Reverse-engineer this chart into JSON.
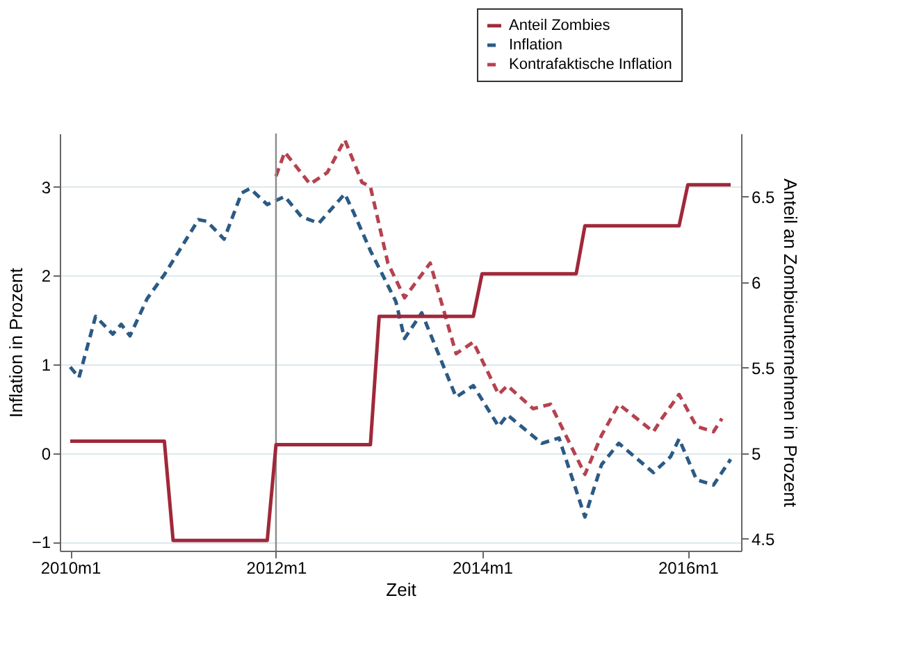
{
  "chart_data": {
    "type": "line",
    "xlabel": "Zeit",
    "ylabel": "Inflation in Prozent",
    "y2label": "Anteil an Zombieunternehmen in Prozent",
    "xlim": [
      "2009-11-25",
      "2016-07-08"
    ],
    "xticks": [
      {
        "value": "2010-01",
        "label": "2010m1"
      },
      {
        "value": "2012-01",
        "label": "2012m1"
      },
      {
        "value": "2014-01",
        "label": "2014m1"
      },
      {
        "value": "2016-01",
        "label": "2016m1"
      }
    ],
    "ylim": [
      -1.1,
      3.6
    ],
    "yticks": [
      -1,
      0,
      1,
      2,
      3
    ],
    "y2lim": [
      4.43,
      6.87
    ],
    "y2ticks": [
      4.5,
      5,
      5.5,
      6,
      6.5
    ],
    "grid": "y",
    "legend": "top right",
    "ref_lines": [
      {
        "axis": "x",
        "value": "2012-01",
        "color": "#8c8c8c",
        "line_style": "solid"
      }
    ],
    "series": [
      {
        "name": "Anteil Zombies",
        "color": "#a0283a",
        "axis": "y2",
        "line_style": "solid",
        "x": [
          "2010-01",
          "2010-12",
          "2011-01",
          "2011-12",
          "2012-01",
          "2012-12",
          "2013-01",
          "2013-12",
          "2014-01",
          "2014-12",
          "2015-01",
          "2015-12",
          "2016-01",
          "2016-06"
        ],
        "values": [
          5.07,
          5.07,
          4.49,
          4.49,
          5.05,
          5.05,
          5.8,
          5.8,
          6.05,
          6.05,
          6.33,
          6.33,
          6.57,
          6.57
        ]
      },
      {
        "name": "Inflation",
        "color": "#2b5a85",
        "line_style": "dashed",
        "x": [
          "2010-01",
          "2010-02",
          "2010-04",
          "2010-06",
          "2010-07",
          "2010-08",
          "2010-10",
          "2010-12",
          "2011-04",
          "2011-05",
          "2011-07",
          "2011-09",
          "2011-10",
          "2011-12",
          "2012-02",
          "2012-04",
          "2012-06",
          "2012-09",
          "2012-10",
          "2012-12",
          "2013-03",
          "2013-04",
          "2013-06",
          "2013-10",
          "2013-12",
          "2014-03",
          "2014-04",
          "2014-08",
          "2014-10",
          "2015-01",
          "2015-03",
          "2015-05",
          "2015-09",
          "2015-11",
          "2015-12",
          "2016-02",
          "2016-04",
          "2016-06"
        ],
        "values": [
          0.97,
          0.85,
          1.54,
          1.34,
          1.45,
          1.32,
          1.74,
          2.01,
          2.63,
          2.61,
          2.41,
          2.93,
          2.98,
          2.8,
          2.89,
          2.66,
          2.59,
          2.92,
          2.72,
          2.28,
          1.71,
          1.29,
          1.58,
          0.63,
          0.76,
          0.3,
          0.43,
          0.11,
          0.17,
          -0.72,
          -0.13,
          0.11,
          -0.22,
          -0.04,
          0.16,
          -0.3,
          -0.36,
          -0.07
        ]
      },
      {
        "name": "Kontrafaktische Inflation",
        "color": "#b5424f",
        "line_style": "dashed",
        "x": [
          "2012-01",
          "2012-02",
          "2012-05",
          "2012-07",
          "2012-09",
          "2012-11",
          "2012-12",
          "2013-02",
          "2013-04",
          "2013-07",
          "2013-10",
          "2013-12",
          "2014-03",
          "2014-04",
          "2014-07",
          "2014-09",
          "2015-01",
          "2015-03",
          "2015-05",
          "2015-09",
          "2015-10",
          "2015-12",
          "2016-02",
          "2016-04",
          "2016-05"
        ],
        "values": [
          3.12,
          3.39,
          3.03,
          3.16,
          3.53,
          3.05,
          3.0,
          2.14,
          1.75,
          2.14,
          1.12,
          1.25,
          0.66,
          0.76,
          0.5,
          0.55,
          -0.24,
          0.2,
          0.55,
          0.24,
          0.39,
          0.66,
          0.3,
          0.24,
          0.39
        ]
      }
    ]
  }
}
